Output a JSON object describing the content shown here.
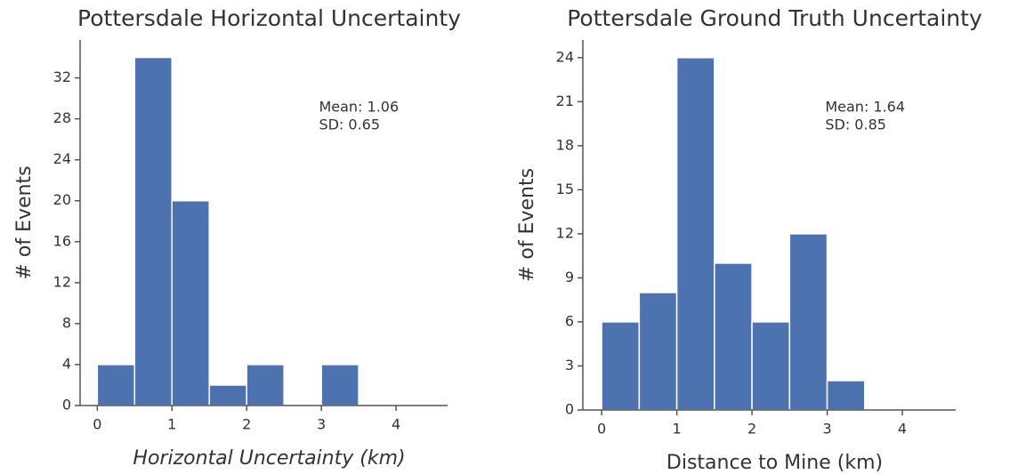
{
  "chart_data": [
    {
      "type": "histogram",
      "title": "Pottersdale Horizontal Uncertainty",
      "x_label": "Horizontal Uncertainty (km)",
      "x_label_style": "italic",
      "y_label": "# of Events",
      "bins": [
        0,
        0.5,
        1,
        1.5,
        2,
        2.5,
        3,
        3.5
      ],
      "values": [
        4,
        34,
        20,
        2,
        4,
        0,
        4
      ],
      "color": "#4c72b0",
      "xlim": [
        -0.23,
        4.69
      ],
      "xticks": [
        0,
        1,
        2,
        3,
        4
      ],
      "ylim": [
        0,
        35.7
      ],
      "yticks": [
        0,
        4,
        8,
        12,
        16,
        20,
        24,
        28,
        32
      ],
      "annotations": [
        "Mean: 1.06",
        "SD: 0.65"
      ]
    },
    {
      "type": "histogram",
      "title": "Pottersdale Ground Truth Uncertainty",
      "x_label": "Distance to Mine (km)",
      "x_label_style": "normal",
      "y_label": "# of Events",
      "bins": [
        0,
        0.5,
        1,
        1.5,
        2,
        2.5,
        3,
        3.5
      ],
      "values": [
        6,
        8,
        24,
        10,
        6,
        12,
        2
      ],
      "color": "#4c72b0",
      "xlim": [
        -0.25,
        4.71
      ],
      "xticks": [
        0,
        1,
        2,
        3,
        4
      ],
      "ylim": [
        0,
        25.2
      ],
      "yticks": [
        0,
        3,
        6,
        9,
        12,
        15,
        18,
        21,
        24
      ],
      "annotations": [
        "Mean: 1.64",
        "SD: 0.85"
      ]
    }
  ]
}
